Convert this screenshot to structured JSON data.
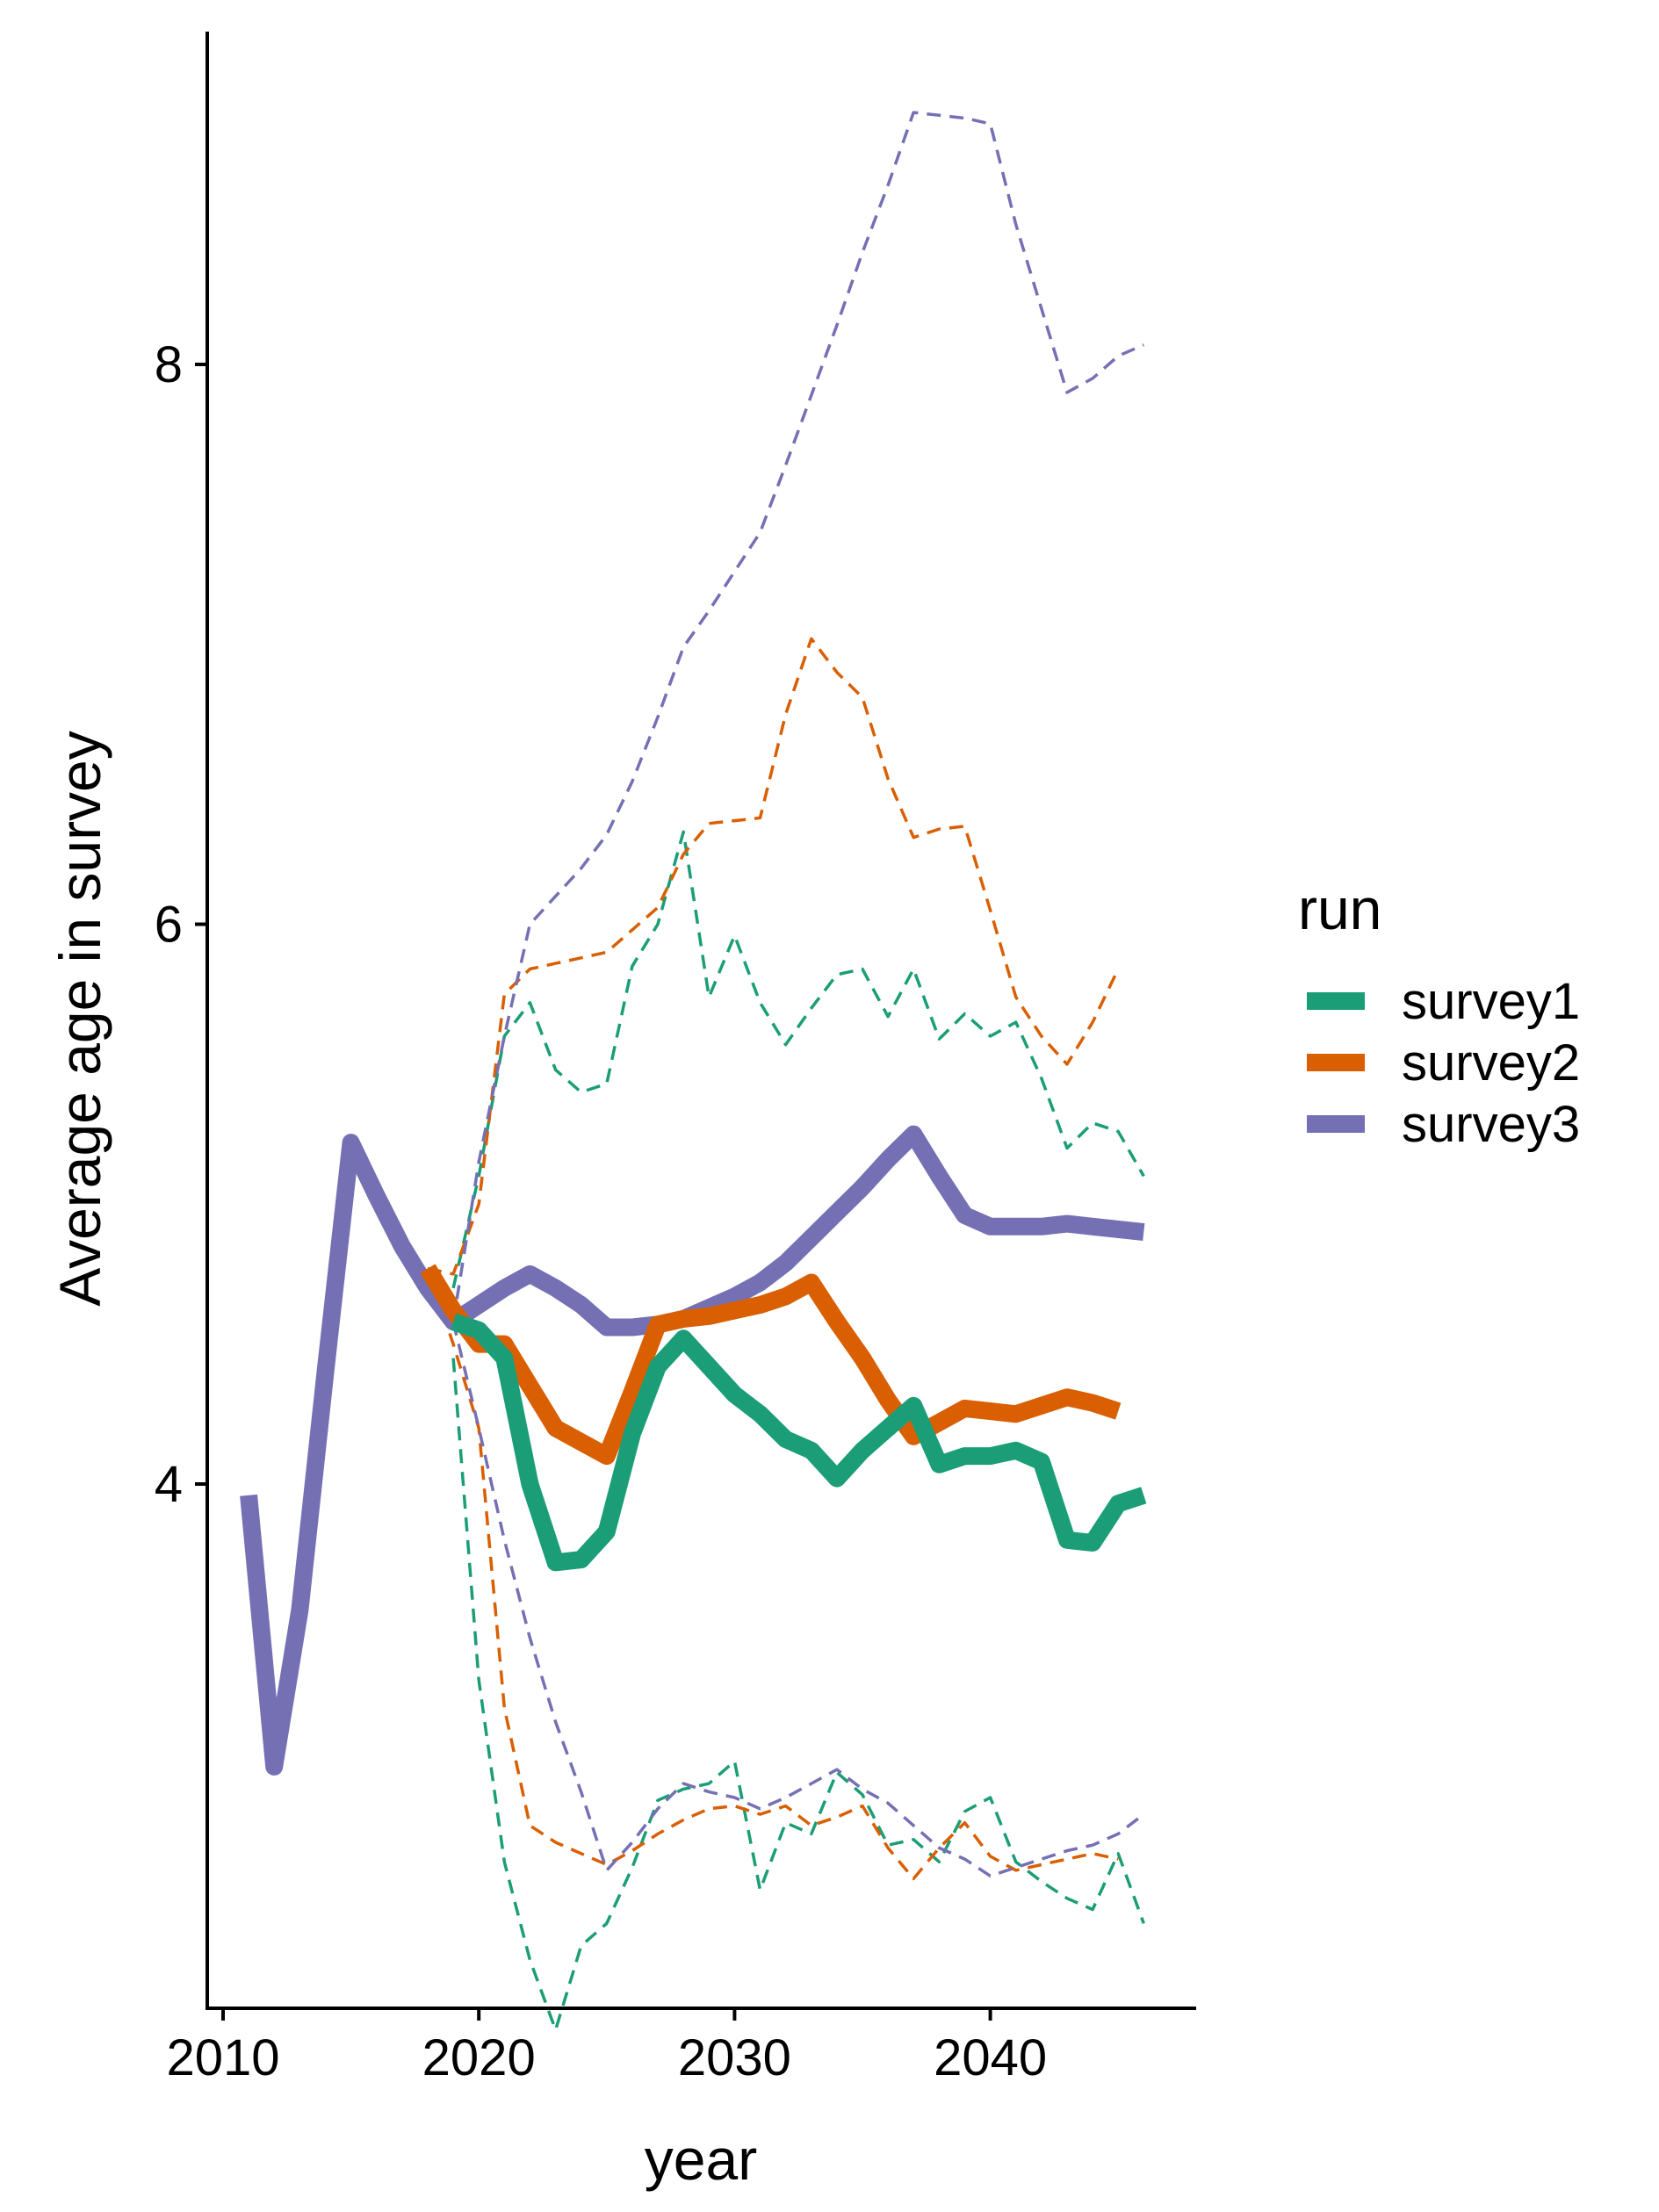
{
  "chart_data": {
    "type": "line",
    "xlabel": "year",
    "ylabel": "Average age in survey",
    "xlim": [
      2010,
      2047
    ],
    "ylim": [
      1.8,
      9.4
    ],
    "x_ticks": [
      2010,
      2020,
      2030,
      2040
    ],
    "y_ticks": [
      4,
      6,
      8
    ],
    "grid": false,
    "legend": {
      "title": "run",
      "placement": "right",
      "entries": [
        {
          "name": "survey1",
          "color": "#1B9E77"
        },
        {
          "name": "survey2",
          "color": "#D95F02"
        },
        {
          "name": "survey3",
          "color": "#7570B3"
        }
      ]
    },
    "series": [
      {
        "name": "survey1",
        "color": "#1B9E77",
        "role": "mean",
        "dash": "solid",
        "x": [
          2019,
          2020,
          2021,
          2022,
          2023,
          2024,
          2025,
          2026,
          2027,
          2028,
          2029,
          2030,
          2031,
          2032,
          2033,
          2034,
          2035,
          2036,
          2037,
          2038,
          2039,
          2040,
          2041,
          2042,
          2043,
          2044,
          2045,
          2046
        ],
        "y": [
          4.58,
          4.55,
          4.45,
          4.0,
          3.72,
          3.73,
          3.83,
          4.18,
          4.42,
          4.52,
          4.42,
          4.32,
          4.25,
          4.16,
          4.12,
          4.02,
          4.12,
          4.2,
          4.28,
          4.07,
          4.1,
          4.1,
          4.12,
          4.08,
          3.8,
          3.79,
          3.93,
          3.96
        ]
      },
      {
        "name": "survey1",
        "color": "#1B9E77",
        "role": "upper",
        "dash": "dashed",
        "x": [
          2019,
          2020,
          2021,
          2022,
          2023,
          2024,
          2025,
          2026,
          2027,
          2028,
          2029,
          2030,
          2031,
          2032,
          2033,
          2034,
          2035,
          2036,
          2037,
          2038,
          2039,
          2040,
          2041,
          2042,
          2043,
          2044,
          2045,
          2046
        ],
        "y": [
          4.7,
          5.1,
          5.6,
          5.72,
          5.48,
          5.4,
          5.43,
          5.85,
          6.0,
          6.33,
          5.74,
          5.96,
          5.72,
          5.57,
          5.7,
          5.82,
          5.84,
          5.67,
          5.84,
          5.59,
          5.68,
          5.6,
          5.65,
          5.45,
          5.2,
          5.29,
          5.26,
          5.1
        ]
      },
      {
        "name": "survey1",
        "color": "#1B9E77",
        "role": "lower",
        "dash": "dashed",
        "x": [
          2019,
          2020,
          2021,
          2022,
          2023,
          2024,
          2025,
          2026,
          2027,
          2028,
          2029,
          2030,
          2031,
          2032,
          2033,
          2034,
          2035,
          2036,
          2037,
          2038,
          2039,
          2040,
          2041,
          2042,
          2043,
          2044,
          2045,
          2046
        ],
        "y": [
          4.45,
          3.3,
          2.65,
          2.3,
          2.05,
          2.35,
          2.43,
          2.63,
          2.87,
          2.91,
          2.93,
          3.01,
          2.55,
          2.79,
          2.75,
          2.97,
          2.89,
          2.71,
          2.73,
          2.65,
          2.83,
          2.88,
          2.65,
          2.58,
          2.52,
          2.48,
          2.68,
          2.43
        ]
      },
      {
        "name": "survey2",
        "color": "#D95F02",
        "role": "mean",
        "dash": "solid",
        "x": [
          2018,
          2019,
          2020,
          2021,
          2022,
          2023,
          2024,
          2025,
          2026,
          2027,
          2028,
          2029,
          2030,
          2031,
          2032,
          2033,
          2034,
          2035,
          2036,
          2037,
          2038,
          2039,
          2040,
          2041,
          2042,
          2043,
          2044,
          2045
        ],
        "y": [
          4.77,
          4.62,
          4.5,
          4.5,
          4.35,
          4.2,
          4.15,
          4.1,
          4.33,
          4.57,
          4.59,
          4.6,
          4.62,
          4.64,
          4.67,
          4.72,
          4.58,
          4.45,
          4.3,
          4.17,
          4.22,
          4.27,
          4.26,
          4.25,
          4.28,
          4.31,
          4.29,
          4.26
        ]
      },
      {
        "name": "survey2",
        "color": "#D95F02",
        "role": "upper",
        "dash": "dashed",
        "x": [
          2018,
          2019,
          2020,
          2021,
          2022,
          2023,
          2024,
          2025,
          2026,
          2027,
          2028,
          2029,
          2030,
          2031,
          2032,
          2033,
          2034,
          2035,
          2036,
          2037,
          2038,
          2039,
          2040,
          2041,
          2042,
          2043,
          2044,
          2045
        ],
        "y": [
          4.77,
          4.75,
          5.0,
          5.75,
          5.84,
          5.86,
          5.88,
          5.9,
          5.98,
          6.06,
          6.25,
          6.36,
          6.37,
          6.38,
          6.75,
          7.02,
          6.9,
          6.81,
          6.52,
          6.31,
          6.34,
          6.35,
          6.05,
          5.74,
          5.6,
          5.5,
          5.65,
          5.84
        ]
      },
      {
        "name": "survey2",
        "color": "#D95F02",
        "role": "lower",
        "dash": "dashed",
        "x": [
          2018,
          2019,
          2020,
          2021,
          2022,
          2023,
          2024,
          2025,
          2026,
          2027,
          2028,
          2029,
          2030,
          2031,
          2032,
          2033,
          2034,
          2035,
          2036,
          2037,
          2038,
          2039,
          2040,
          2041,
          2042,
          2043,
          2044,
          2045
        ],
        "y": [
          4.77,
          4.5,
          4.2,
          3.2,
          2.78,
          2.72,
          2.68,
          2.64,
          2.69,
          2.75,
          2.8,
          2.84,
          2.85,
          2.82,
          2.85,
          2.78,
          2.81,
          2.85,
          2.7,
          2.59,
          2.7,
          2.79,
          2.67,
          2.62,
          2.64,
          2.66,
          2.68,
          2.66
        ]
      },
      {
        "name": "survey3",
        "color": "#7570B3",
        "role": "mean",
        "dash": "solid",
        "x": [
          2011,
          2012,
          2013,
          2014,
          2015,
          2016,
          2017,
          2018,
          2019,
          2020,
          2021,
          2022,
          2023,
          2024,
          2025,
          2026,
          2027,
          2028,
          2029,
          2030,
          2031,
          2032,
          2033,
          2034,
          2035,
          2036,
          2037,
          2038,
          2039,
          2040,
          2041,
          2042,
          2043,
          2044,
          2045,
          2046
        ],
        "y": [
          3.96,
          2.99,
          3.55,
          4.4,
          5.22,
          5.03,
          4.85,
          4.7,
          4.58,
          4.64,
          4.7,
          4.75,
          4.7,
          4.64,
          4.56,
          4.56,
          4.57,
          4.59,
          4.63,
          4.67,
          4.72,
          4.79,
          4.88,
          4.97,
          5.06,
          5.16,
          5.25,
          5.1,
          4.96,
          4.92,
          4.92,
          4.92,
          4.93,
          4.92,
          4.91,
          4.9
        ]
      },
      {
        "name": "survey3",
        "color": "#7570B3",
        "role": "upper",
        "dash": "dashed",
        "x": [
          2019,
          2020,
          2021,
          2022,
          2023,
          2024,
          2025,
          2026,
          2027,
          2028,
          2029,
          2030,
          2031,
          2032,
          2033,
          2034,
          2035,
          2036,
          2037,
          2038,
          2039,
          2040,
          2041,
          2042,
          2043,
          2044,
          2045,
          2046
        ],
        "y": [
          4.58,
          5.15,
          5.6,
          6.0,
          6.1,
          6.2,
          6.32,
          6.51,
          6.74,
          6.99,
          7.12,
          7.26,
          7.4,
          7.64,
          7.89,
          8.14,
          8.4,
          8.64,
          8.9,
          8.89,
          8.88,
          8.86,
          8.5,
          8.2,
          7.9,
          7.95,
          8.03,
          8.07
        ]
      },
      {
        "name": "survey3",
        "color": "#7570B3",
        "role": "lower",
        "dash": "dashed",
        "x": [
          2019,
          2020,
          2021,
          2022,
          2023,
          2024,
          2025,
          2026,
          2027,
          2028,
          2029,
          2030,
          2031,
          2032,
          2033,
          2034,
          2035,
          2036,
          2037,
          2038,
          2039,
          2040,
          2041,
          2042,
          2043,
          2044,
          2045,
          2046
        ],
        "y": [
          4.58,
          4.2,
          3.8,
          3.45,
          3.15,
          2.9,
          2.62,
          2.72,
          2.84,
          2.93,
          2.9,
          2.88,
          2.84,
          2.88,
          2.93,
          2.98,
          2.91,
          2.86,
          2.78,
          2.7,
          2.66,
          2.6,
          2.63,
          2.66,
          2.69,
          2.71,
          2.75,
          2.82
        ]
      }
    ]
  }
}
